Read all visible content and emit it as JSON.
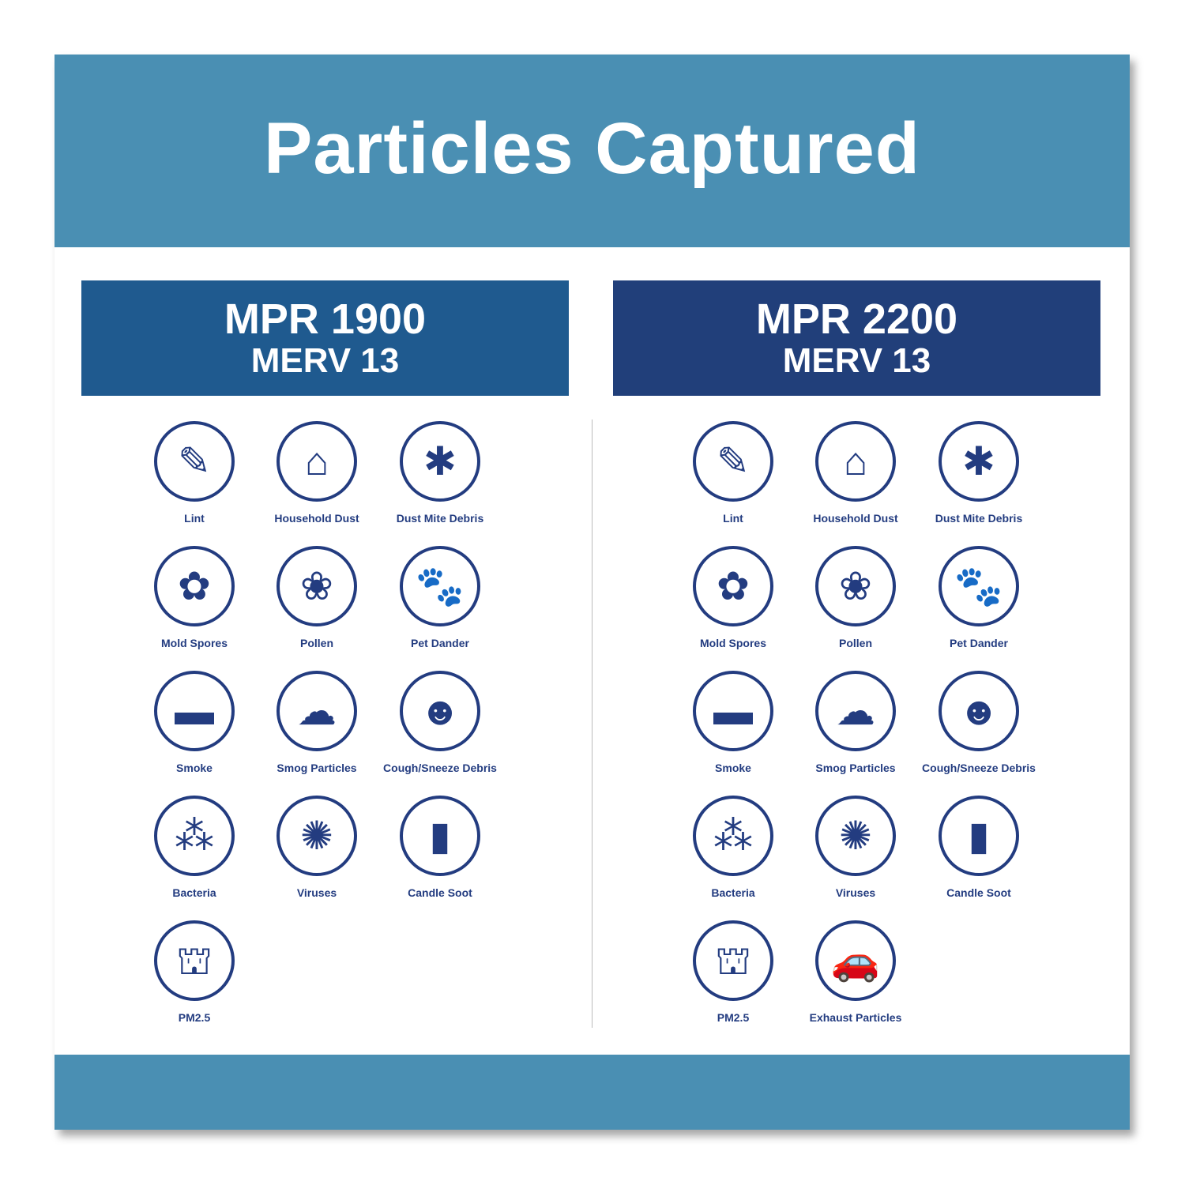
{
  "title": "Particles Captured",
  "colors": {
    "band": "#4a8fb3",
    "left_header": "#1f5a8f",
    "right_header": "#213f7a",
    "icon": "#233c80"
  },
  "columns": [
    {
      "line1": "MPR 1900",
      "line2": "MERV 13",
      "items": [
        {
          "label": "Lint",
          "icon": "lint-roller-icon",
          "glyph": "✎"
        },
        {
          "label": "Household Dust",
          "icon": "dustpan-icon",
          "glyph": "⌂"
        },
        {
          "label": "Dust Mite Debris",
          "icon": "dust-mite-icon",
          "glyph": "✱"
        },
        {
          "label": "Mold Spores",
          "icon": "flowers-icon",
          "glyph": "✿"
        },
        {
          "label": "Pollen",
          "icon": "pollen-flower-icon",
          "glyph": "❀"
        },
        {
          "label": "Pet Dander",
          "icon": "paw-icon",
          "glyph": "🐾"
        },
        {
          "label": "Smoke",
          "icon": "cigarette-icon",
          "glyph": "▬"
        },
        {
          "label": "Smog Particles",
          "icon": "smog-city-icon",
          "glyph": "☁"
        },
        {
          "label": "Cough/Sneeze Debris",
          "icon": "sneeze-face-icon",
          "glyph": "☻"
        },
        {
          "label": "Bacteria",
          "icon": "bacteria-icon",
          "glyph": "⁂"
        },
        {
          "label": "Viruses",
          "icon": "virus-icon",
          "glyph": "✺"
        },
        {
          "label": "Candle Soot",
          "icon": "candle-icon",
          "glyph": "▮"
        },
        {
          "label": "PM2.5",
          "icon": "smokestack-icon",
          "glyph": "⛫"
        }
      ]
    },
    {
      "line1": "MPR 2200",
      "line2": "MERV 13",
      "items": [
        {
          "label": "Lint",
          "icon": "lint-roller-icon",
          "glyph": "✎"
        },
        {
          "label": "Household Dust",
          "icon": "dustpan-icon",
          "glyph": "⌂"
        },
        {
          "label": "Dust Mite Debris",
          "icon": "dust-mite-icon",
          "glyph": "✱"
        },
        {
          "label": "Mold Spores",
          "icon": "flowers-icon",
          "glyph": "✿"
        },
        {
          "label": "Pollen",
          "icon": "pollen-flower-icon",
          "glyph": "❀"
        },
        {
          "label": "Pet Dander",
          "icon": "paw-icon",
          "glyph": "🐾"
        },
        {
          "label": "Smoke",
          "icon": "cigarette-icon",
          "glyph": "▬"
        },
        {
          "label": "Smog Particles",
          "icon": "smog-city-icon",
          "glyph": "☁"
        },
        {
          "label": "Cough/Sneeze Debris",
          "icon": "sneeze-face-icon",
          "glyph": "☻"
        },
        {
          "label": "Bacteria",
          "icon": "bacteria-icon",
          "glyph": "⁂"
        },
        {
          "label": "Viruses",
          "icon": "virus-icon",
          "glyph": "✺"
        },
        {
          "label": "Candle Soot",
          "icon": "candle-icon",
          "glyph": "▮"
        },
        {
          "label": "PM2.5",
          "icon": "smokestack-icon",
          "glyph": "⛫"
        },
        {
          "label": "Exhaust Particles",
          "icon": "car-exhaust-icon",
          "glyph": "🚗"
        }
      ]
    }
  ]
}
